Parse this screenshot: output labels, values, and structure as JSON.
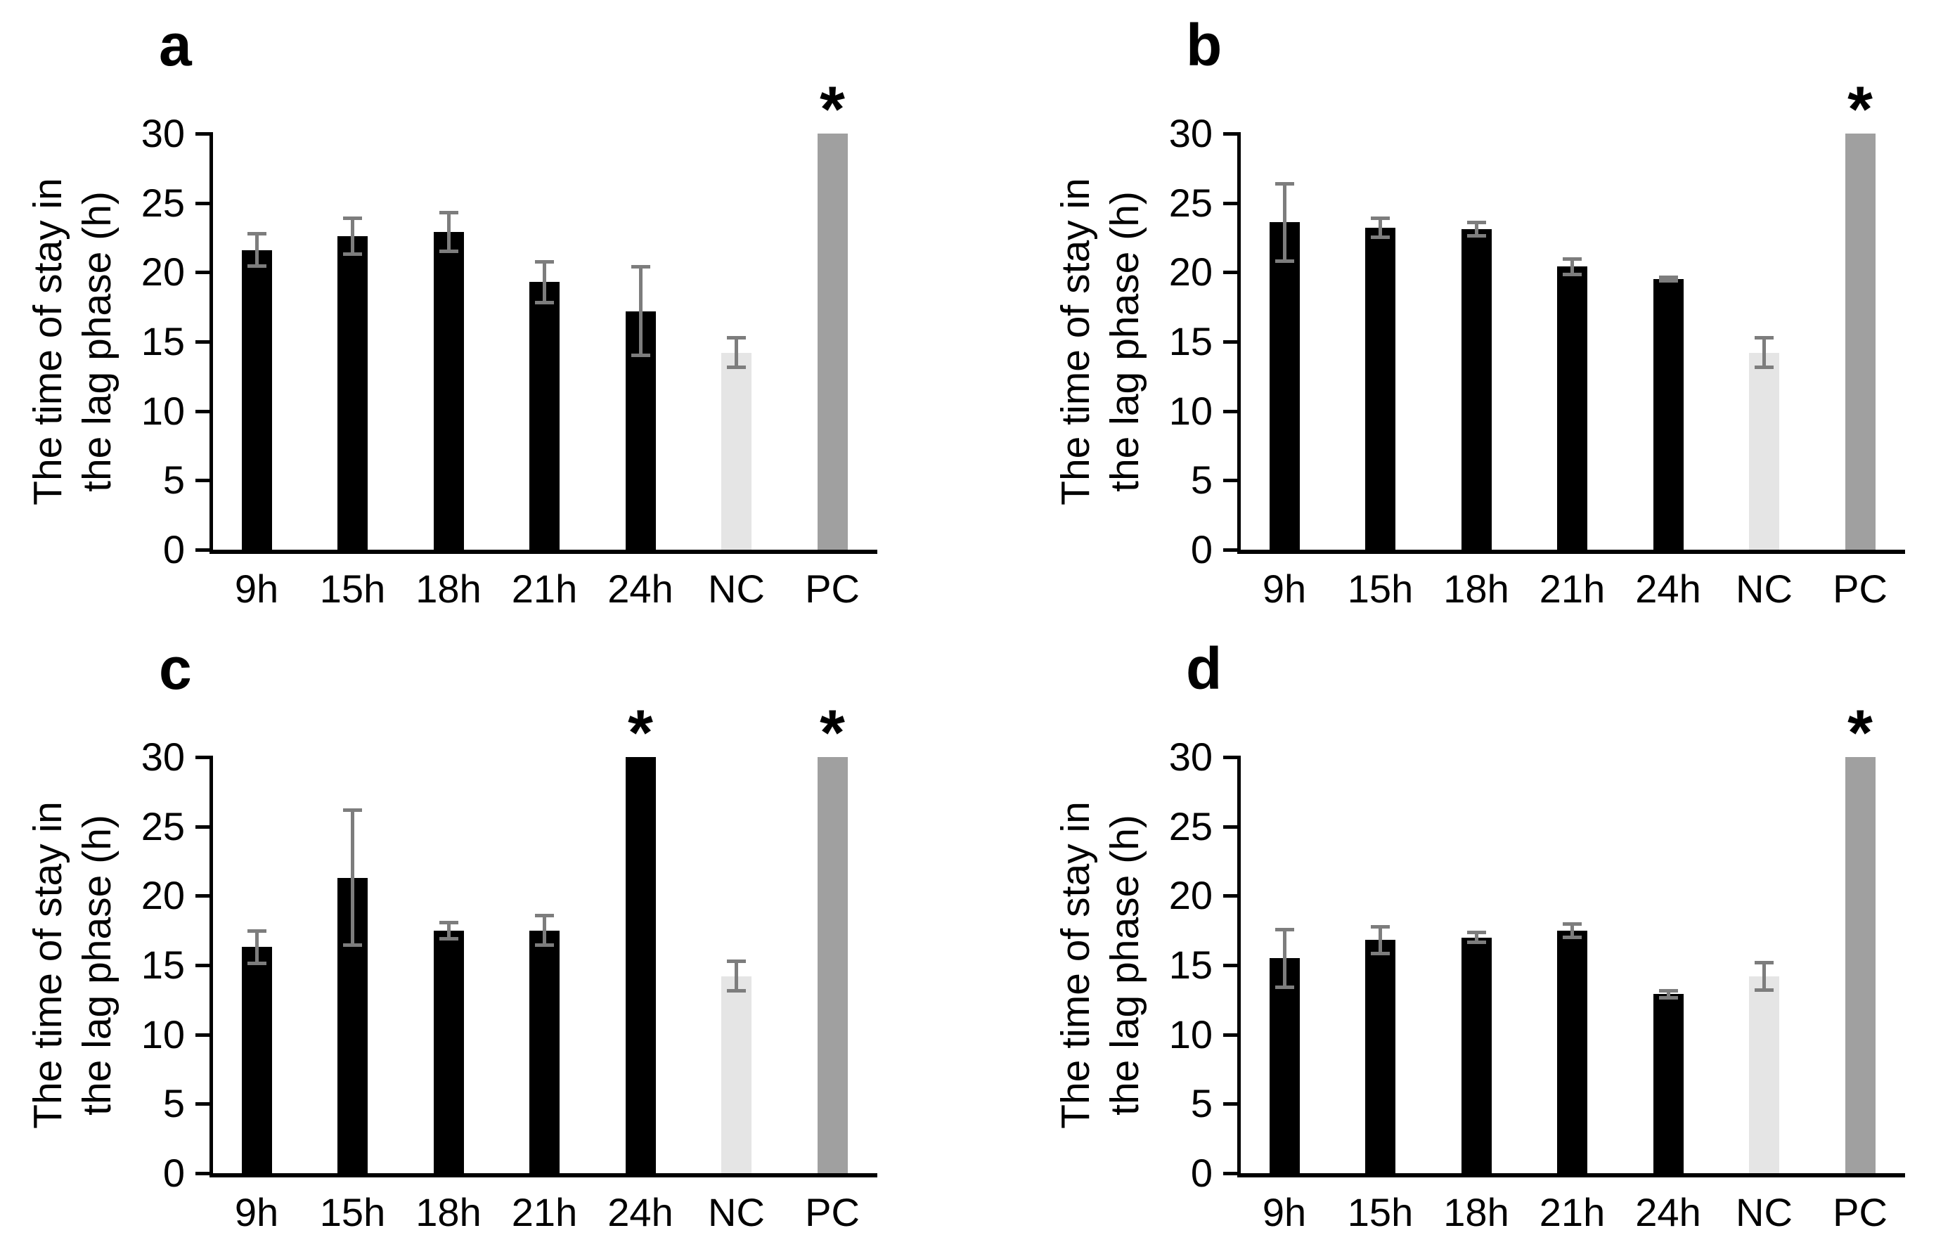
{
  "figure": {
    "ylabel_line1": "The time of stay in",
    "ylabel_line2": "the lag phase (h)",
    "sig_marker": "*",
    "colors": {
      "sample_bar": "#000000",
      "nc_bar": "#e5e5e5",
      "pc_bar": "#a0a0a0",
      "error_bar": "#7d7d7d",
      "axis": "#000000",
      "background": "#ffffff"
    }
  },
  "chart_data": [
    {
      "type": "bar",
      "panel_label": "a",
      "ylabel": "The time of stay in the lag phase (h)",
      "ylim": [
        0,
        30
      ],
      "yticks": [
        0,
        5,
        10,
        15,
        20,
        25,
        30
      ],
      "categories": [
        "9h",
        "15h",
        "18h",
        "21h",
        "24h",
        "NC",
        "PC"
      ],
      "values": [
        21.6,
        22.6,
        22.9,
        19.3,
        17.2,
        14.2,
        30
      ],
      "errors": [
        1.2,
        1.3,
        1.4,
        1.5,
        3.2,
        1.1,
        0
      ],
      "significant": [
        false,
        false,
        false,
        false,
        false,
        false,
        true
      ],
      "bar_roles": [
        "sample",
        "sample",
        "sample",
        "sample",
        "sample",
        "nc",
        "pc"
      ],
      "grid": false,
      "legend": "none"
    },
    {
      "type": "bar",
      "panel_label": "b",
      "ylabel": "The time of stay in the lag phase (h)",
      "ylim": [
        0,
        30
      ],
      "yticks": [
        0,
        5,
        10,
        15,
        20,
        25,
        30
      ],
      "categories": [
        "9h",
        "15h",
        "18h",
        "21h",
        "24h",
        "NC",
        "PC"
      ],
      "values": [
        23.6,
        23.2,
        23.1,
        20.4,
        19.5,
        14.2,
        30
      ],
      "errors": [
        2.8,
        0.7,
        0.5,
        0.6,
        0.15,
        1.1,
        0
      ],
      "significant": [
        false,
        false,
        false,
        false,
        false,
        false,
        true
      ],
      "bar_roles": [
        "sample",
        "sample",
        "sample",
        "sample",
        "sample",
        "nc",
        "pc"
      ],
      "grid": false,
      "legend": "none"
    },
    {
      "type": "bar",
      "panel_label": "c",
      "ylabel": "The time of stay in the lag phase (h)",
      "ylim": [
        0,
        30
      ],
      "yticks": [
        0,
        5,
        10,
        15,
        20,
        25,
        30
      ],
      "categories": [
        "9h",
        "15h",
        "18h",
        "21h",
        "24h",
        "NC",
        "PC"
      ],
      "values": [
        16.3,
        21.3,
        17.5,
        17.5,
        30,
        14.2,
        30
      ],
      "errors": [
        1.2,
        4.9,
        0.6,
        1.1,
        0,
        1.1,
        0
      ],
      "significant": [
        false,
        false,
        false,
        false,
        true,
        false,
        true
      ],
      "bar_roles": [
        "sample",
        "sample",
        "sample",
        "sample",
        "sample",
        "nc",
        "pc"
      ],
      "grid": false,
      "legend": "none"
    },
    {
      "type": "bar",
      "panel_label": "d",
      "ylabel": "The time of stay in the lag phase (h)",
      "ylim": [
        0,
        30
      ],
      "yticks": [
        0,
        5,
        10,
        15,
        20,
        25,
        30
      ],
      "categories": [
        "9h",
        "15h",
        "18h",
        "21h",
        "24h",
        "NC",
        "PC"
      ],
      "values": [
        15.5,
        16.8,
        17.0,
        17.5,
        12.9,
        14.2,
        30
      ],
      "errors": [
        2.1,
        1.0,
        0.4,
        0.5,
        0.3,
        1.0,
        0
      ],
      "significant": [
        false,
        false,
        false,
        false,
        false,
        false,
        true
      ],
      "bar_roles": [
        "sample",
        "sample",
        "sample",
        "sample",
        "sample",
        "nc",
        "pc"
      ],
      "grid": false,
      "legend": "none"
    }
  ]
}
